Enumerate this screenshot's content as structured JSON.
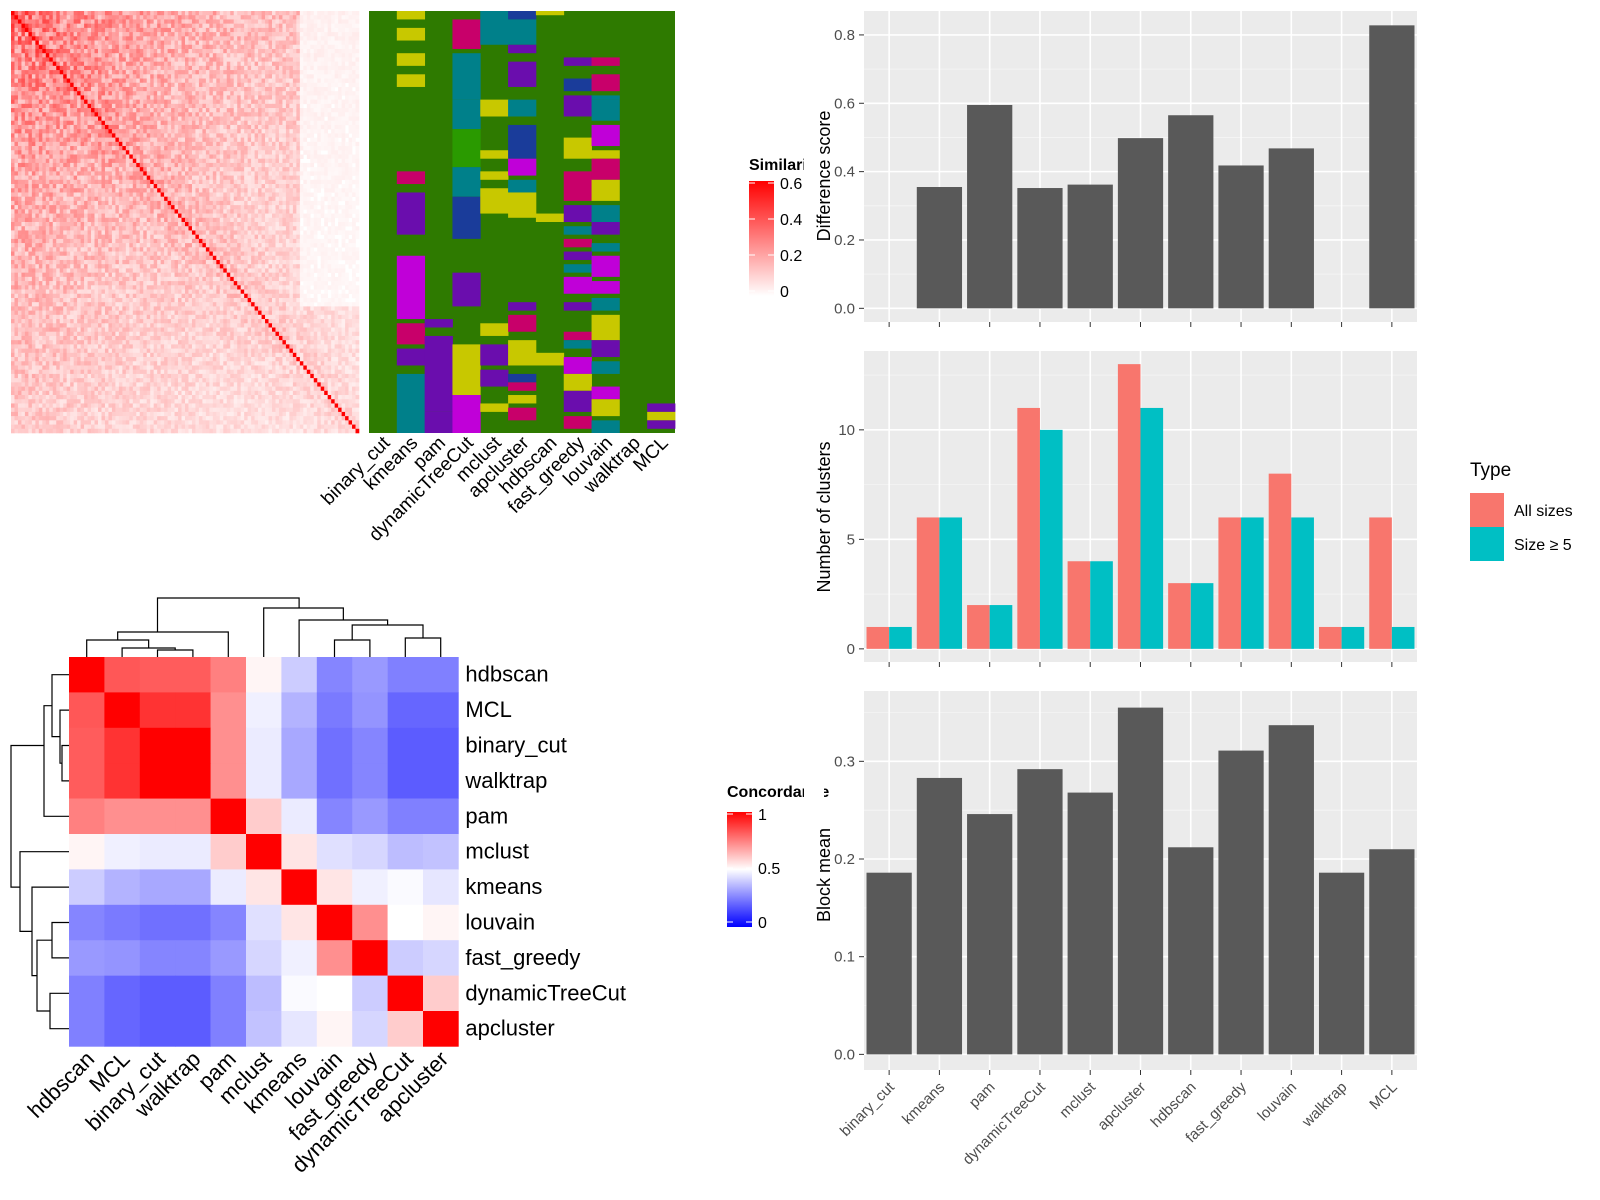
{
  "colors": {
    "panel_bg": "#EBEBEB",
    "bar_fill": "#595959",
    "all_sizes": "#F8766D",
    "size_ge5": "#00BFC4",
    "heat_low": "#0000FF",
    "heat_mid": "#FFFFFF",
    "heat_high": "#FF0000",
    "assign_palette": [
      "#2E7A00",
      "#C8C800",
      "#C8006A",
      "#00808A",
      "#6A0DAD",
      "#C000D8",
      "#1A3C9A",
      "#2A9A00"
    ]
  },
  "chart_data": [
    {
      "id": "similarity_heatmap",
      "type": "heatmap",
      "title": "",
      "legend": {
        "title": "Similarity",
        "ticks": [
          "0.6",
          "0.4",
          "0.2",
          "0"
        ]
      },
      "value_range": [
        0,
        0.6
      ],
      "n_samples": 100,
      "assignment_columns": [
        "binary_cut",
        "kmeans",
        "pam",
        "dynamicTreeCut",
        "mclust",
        "apcluster",
        "hdbscan",
        "fast_greedy",
        "louvain",
        "walktrap",
        "MCL"
      ]
    },
    {
      "id": "concordance_heatmap",
      "type": "heatmap",
      "title": "",
      "legend": {
        "title": "Concordance",
        "ticks": [
          "1",
          "0.5",
          "0"
        ]
      },
      "rows": [
        "hdbscan",
        "MCL",
        "binary_cut",
        "walktrap",
        "pam",
        "mclust",
        "kmeans",
        "louvain",
        "fast_greedy",
        "dynamicTreeCut",
        "apcluster"
      ],
      "cols": [
        "hdbscan",
        "MCL",
        "binary_cut",
        "walktrap",
        "pam",
        "mclust",
        "kmeans",
        "louvain",
        "fast_greedy",
        "dynamicTreeCut",
        "apcluster"
      ],
      "values": [
        [
          1.0,
          0.83,
          0.82,
          0.82,
          0.75,
          0.52,
          0.4,
          0.26,
          0.3,
          0.25,
          0.25
        ],
        [
          0.83,
          1.0,
          0.9,
          0.9,
          0.72,
          0.47,
          0.35,
          0.24,
          0.29,
          0.2,
          0.2
        ],
        [
          0.82,
          0.9,
          1.0,
          1.0,
          0.72,
          0.46,
          0.33,
          0.22,
          0.26,
          0.18,
          0.18
        ],
        [
          0.82,
          0.9,
          1.0,
          1.0,
          0.72,
          0.46,
          0.33,
          0.22,
          0.26,
          0.18,
          0.18
        ],
        [
          0.75,
          0.72,
          0.72,
          0.72,
          1.0,
          0.6,
          0.46,
          0.26,
          0.3,
          0.25,
          0.25
        ],
        [
          0.52,
          0.47,
          0.46,
          0.46,
          0.6,
          1.0,
          0.55,
          0.44,
          0.42,
          0.37,
          0.38
        ],
        [
          0.4,
          0.35,
          0.33,
          0.33,
          0.46,
          0.55,
          1.0,
          0.55,
          0.47,
          0.49,
          0.45
        ],
        [
          0.26,
          0.24,
          0.22,
          0.22,
          0.26,
          0.44,
          0.55,
          1.0,
          0.72,
          0.5,
          0.52
        ],
        [
          0.3,
          0.29,
          0.26,
          0.26,
          0.3,
          0.42,
          0.47,
          0.72,
          1.0,
          0.4,
          0.42
        ],
        [
          0.25,
          0.2,
          0.18,
          0.18,
          0.25,
          0.37,
          0.49,
          0.5,
          0.4,
          1.0,
          0.6
        ],
        [
          0.25,
          0.2,
          0.18,
          0.18,
          0.25,
          0.38,
          0.45,
          0.52,
          0.42,
          0.6,
          1.0
        ]
      ],
      "value_range": [
        0,
        1
      ]
    },
    {
      "id": "difference_score",
      "type": "bar",
      "title": "",
      "xlabel": "",
      "ylabel": "Difference score",
      "categories": [
        "binary_cut",
        "kmeans",
        "pam",
        "dynamicTreeCut",
        "mclust",
        "apcluster",
        "hdbscan",
        "fast_greedy",
        "louvain",
        "walktrap",
        "MCL"
      ],
      "values": [
        0,
        0.355,
        0.595,
        0.352,
        0.362,
        0.498,
        0.565,
        0.418,
        0.468,
        0,
        0.828
      ],
      "ylim": [
        -0.04,
        0.87
      ],
      "yticks": [
        0,
        0.2,
        0.4,
        0.6,
        0.8
      ],
      "ytick_labels": [
        "0.0",
        "0.2",
        "0.4",
        "0.6",
        "0.8"
      ],
      "grid": true
    },
    {
      "id": "number_of_clusters",
      "type": "bar",
      "title": "",
      "xlabel": "",
      "ylabel": "Number of clusters",
      "categories": [
        "binary_cut",
        "kmeans",
        "pam",
        "dynamicTreeCut",
        "mclust",
        "apcluster",
        "hdbscan",
        "fast_greedy",
        "louvain",
        "walktrap",
        "MCL"
      ],
      "series": [
        {
          "name": "All sizes",
          "values": [
            1,
            6,
            2,
            11,
            4,
            13,
            3,
            6,
            8,
            1,
            6
          ]
        },
        {
          "name": "Size ≥ 5",
          "values": [
            1,
            6,
            2,
            10,
            4,
            11,
            3,
            6,
            6,
            1,
            1
          ]
        }
      ],
      "ylim": [
        -0.6,
        13.6
      ],
      "yticks": [
        0,
        5,
        10
      ],
      "ytick_labels": [
        "0",
        "5",
        "10"
      ],
      "legend": {
        "title": "Type",
        "position": "right"
      },
      "grid": true
    },
    {
      "id": "block_mean",
      "type": "bar",
      "title": "",
      "xlabel": "",
      "ylabel": "Block mean",
      "categories": [
        "binary_cut",
        "kmeans",
        "pam",
        "dynamicTreeCut",
        "mclust",
        "apcluster",
        "hdbscan",
        "fast_greedy",
        "louvain",
        "walktrap",
        "MCL"
      ],
      "values": [
        0.186,
        0.283,
        0.246,
        0.292,
        0.268,
        0.355,
        0.212,
        0.311,
        0.337,
        0.186,
        0.21
      ],
      "ylim": [
        -0.016,
        0.372
      ],
      "yticks": [
        0,
        0.1,
        0.2,
        0.3
      ],
      "ytick_labels": [
        "0.0",
        "0.1",
        "0.2",
        "0.3"
      ],
      "grid": true
    }
  ]
}
